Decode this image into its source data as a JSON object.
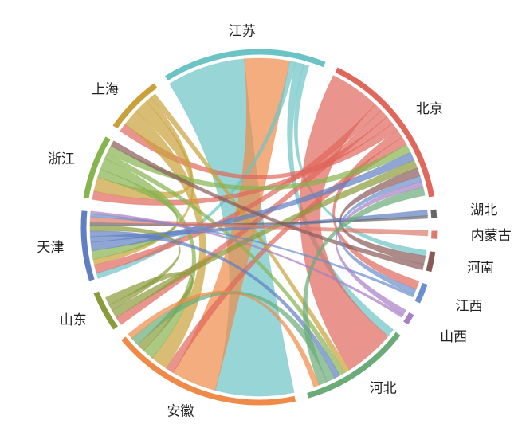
{
  "chart_data": {
    "type": "chord",
    "nodes": [
      {
        "name": "江苏",
        "value": 56,
        "color": "#6cc3c4"
      },
      {
        "name": "北京",
        "value": 56,
        "color": "#e0675b"
      },
      {
        "name": "湖北",
        "value": 3,
        "color": "#666666"
      },
      {
        "name": "内蒙古",
        "value": 3,
        "color": "#dc7a6c"
      },
      {
        "name": "河南",
        "value": 7,
        "color": "#8a5a58"
      },
      {
        "name": "江西",
        "value": 7,
        "color": "#6b8fcb"
      },
      {
        "name": "山西",
        "value": 4,
        "color": "#a77fc4"
      },
      {
        "name": "河北",
        "value": 38,
        "color": "#6aab78"
      },
      {
        "name": "安徽",
        "value": 65,
        "color": "#ef8a48"
      },
      {
        "name": "山东",
        "value": 14,
        "color": "#8c9a3a"
      },
      {
        "name": "天津",
        "value": 24,
        "color": "#5f7fc2"
      },
      {
        "name": "浙江",
        "value": 22,
        "color": "#86b44f"
      },
      {
        "name": "上海",
        "value": 20,
        "color": "#c9a13a"
      }
    ],
    "links": [
      {
        "source": "江苏",
        "target": "安徽",
        "value": 28
      },
      {
        "source": "安徽",
        "target": "江苏",
        "value": 16
      },
      {
        "source": "江苏",
        "target": "天津",
        "value": 2
      },
      {
        "source": "江苏",
        "target": "河北",
        "value": 3
      },
      {
        "source": "江苏",
        "target": "河南",
        "value": 2
      },
      {
        "source": "北京",
        "target": "河北",
        "value": 18
      },
      {
        "source": "北京",
        "target": "天津",
        "value": 3
      },
      {
        "source": "北京",
        "target": "山东",
        "value": 3
      },
      {
        "source": "北京",
        "target": "浙江",
        "value": 3
      },
      {
        "source": "北京",
        "target": "上海",
        "value": 3
      },
      {
        "source": "北京",
        "target": "江西",
        "value": 3
      },
      {
        "source": "北京",
        "target": "安徽",
        "value": 3
      },
      {
        "source": "上海",
        "target": "安徽",
        "value": 6
      },
      {
        "source": "上海",
        "target": "浙江",
        "value": 5
      },
      {
        "source": "上海",
        "target": "天津",
        "value": 2
      },
      {
        "source": "上海",
        "target": "河北",
        "value": 2
      },
      {
        "source": "浙江",
        "target": "天津",
        "value": 3
      },
      {
        "source": "浙江",
        "target": "安徽",
        "value": 4
      },
      {
        "source": "浙江",
        "target": "河北",
        "value": 2
      },
      {
        "source": "浙江",
        "target": "北京",
        "value": 3
      },
      {
        "source": "天津",
        "target": "北京",
        "value": 3
      },
      {
        "source": "天津",
        "target": "湖北",
        "value": 2
      },
      {
        "source": "天津",
        "target": "河北",
        "value": 2
      },
      {
        "source": "山东",
        "target": "北京",
        "value": 3
      },
      {
        "source": "山东",
        "target": "天津",
        "value": 2
      },
      {
        "source": "山东",
        "target": "安徽",
        "value": 3
      },
      {
        "source": "湖北",
        "target": "天津",
        "value": 1
      },
      {
        "source": "内蒙古",
        "target": "天津",
        "value": 2
      },
      {
        "source": "河南",
        "target": "北京",
        "value": 3
      },
      {
        "source": "河南",
        "target": "浙江",
        "value": 2
      },
      {
        "source": "江西",
        "target": "北京",
        "value": 2
      },
      {
        "source": "江西",
        "target": "天津",
        "value": 1
      },
      {
        "source": "山西",
        "target": "北京",
        "value": 2
      },
      {
        "source": "山西",
        "target": "天津",
        "value": 1
      },
      {
        "source": "河北",
        "target": "安徽",
        "value": 3
      },
      {
        "source": "河北",
        "target": "北京",
        "value": 3
      },
      {
        "source": "安徽",
        "target": "河北",
        "value": 2
      }
    ]
  }
}
